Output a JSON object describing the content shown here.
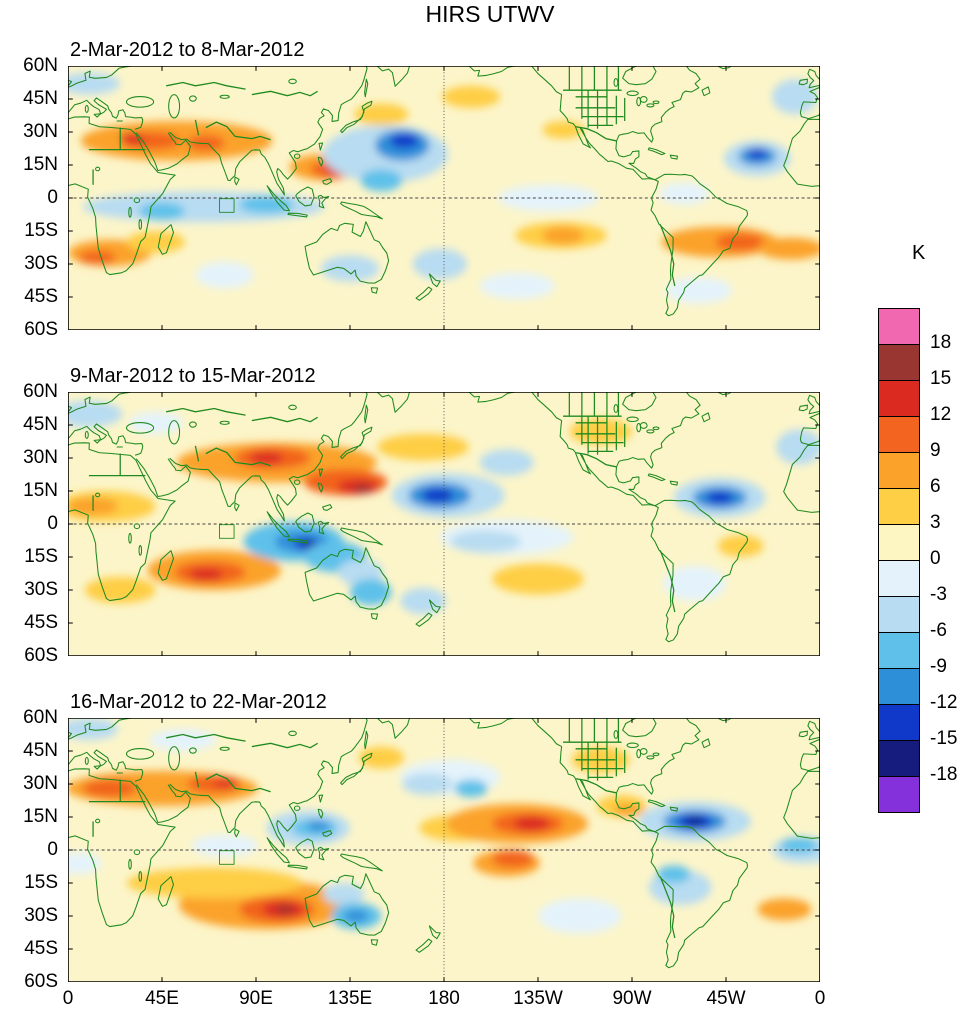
{
  "title": "HIRS UTWV",
  "colorbar": {
    "label": "K"
  },
  "colors": {
    "map_background": "#FCF5C9",
    "coastline": "#1F8A1F",
    "gridline": "#444444",
    "frame": "#000000"
  },
  "chart_data": {
    "type": "heatmap",
    "title": "HIRS UTWV",
    "units": "K",
    "lat_range": [
      -60,
      60
    ],
    "lon_range_deg_east": [
      0,
      360
    ],
    "lat_labels": [
      "60N",
      "45N",
      "30N",
      "15N",
      "0",
      "15S",
      "30S",
      "45S",
      "60S"
    ],
    "lon_labels": [
      "0",
      "45E",
      "90E",
      "135E",
      "180",
      "135W",
      "90W",
      "45W",
      "0"
    ],
    "levels": [
      -18,
      -15,
      -12,
      -9,
      -6,
      -3,
      0,
      3,
      6,
      9,
      12,
      15,
      18
    ],
    "palette_low_to_high": [
      "#8430DB",
      "#151C7D",
      "#1039C9",
      "#2E8FD9",
      "#5FC1EA",
      "#B8DCF1",
      "#E4F3FB",
      "#FDF6C3",
      "#FECE45",
      "#FBA22A",
      "#F2641F",
      "#DB2A20",
      "#993632",
      "#F168B1"
    ],
    "background_anomaly_color": "#FCF5C9",
    "gridlines": {
      "equator_dashed": true,
      "dateline_dotted": true
    },
    "feature_format": [
      "lon_deg_east",
      "lat_deg",
      "rx_deg",
      "ry_deg",
      "anomaly_K"
    ],
    "panels": [
      {
        "label": "2-Mar-2012 to 8-Mar-2012",
        "features": [
          [
            52,
            26,
            46,
            9,
            7
          ],
          [
            40,
            26,
            14,
            4,
            10
          ],
          [
            31,
            27,
            6,
            2.6,
            13
          ],
          [
            66,
            25,
            9,
            3.5,
            10
          ],
          [
            122,
            14,
            16,
            6,
            7
          ],
          [
            128,
            13,
            12,
            4.2,
            10
          ],
          [
            128,
            13,
            5.5,
            2.2,
            13
          ],
          [
            193,
            46,
            14,
            5,
            4
          ],
          [
            237,
            31,
            10,
            4,
            4
          ],
          [
            150,
            38,
            13,
            5,
            4
          ],
          [
            20,
            -25,
            20,
            6,
            7
          ],
          [
            14,
            -27,
            9,
            3,
            10
          ],
          [
            42,
            -20,
            14,
            5,
            4
          ],
          [
            312,
            -20,
            28,
            7,
            7
          ],
          [
            322,
            -20,
            12,
            4,
            10
          ],
          [
            346,
            -23,
            16,
            5,
            7
          ],
          [
            236,
            -17,
            22,
            6,
            4
          ],
          [
            237,
            -17,
            10,
            4,
            7
          ],
          [
            65,
            -4,
            58,
            7,
            -4
          ],
          [
            95,
            -3,
            13,
            4,
            -7
          ],
          [
            45,
            -6,
            11,
            4,
            -7
          ],
          [
            152,
            20,
            30,
            13,
            -4
          ],
          [
            160,
            24,
            13,
            7,
            -10
          ],
          [
            161,
            26,
            7,
            3.2,
            -13
          ],
          [
            150,
            8,
            10,
            5,
            -7
          ],
          [
            330,
            18,
            16,
            8,
            -4
          ],
          [
            330,
            19,
            9,
            4.2,
            -10
          ],
          [
            330,
            20,
            4.5,
            2.2,
            -13
          ],
          [
            10,
            52,
            15,
            5,
            -4
          ],
          [
            348,
            46,
            11,
            8,
            -4
          ],
          [
            135,
            -32,
            14,
            6,
            -4
          ],
          [
            178,
            -30,
            13,
            7,
            -4
          ],
          [
            75,
            -35,
            14,
            6,
            -2
          ],
          [
            230,
            0,
            24,
            6,
            -2
          ],
          [
            295,
            2,
            12,
            5,
            -2
          ],
          [
            215,
            -40,
            18,
            6,
            -2
          ],
          [
            302,
            -42,
            16,
            6,
            -2
          ]
        ]
      },
      {
        "label": "9-Mar-2012 to 15-Mar-2012",
        "features": [
          [
            100,
            28,
            48,
            9,
            7
          ],
          [
            98,
            30,
            18,
            5,
            10
          ],
          [
            95,
            30,
            8,
            2.8,
            13
          ],
          [
            133,
            19,
            20,
            6,
            10
          ],
          [
            139,
            17,
            10,
            3.4,
            13
          ],
          [
            141,
            16,
            4.5,
            1.7,
            16
          ],
          [
            170,
            35,
            22,
            6,
            4
          ],
          [
            70,
            -21,
            32,
            9,
            7
          ],
          [
            68,
            -22,
            17,
            5,
            10
          ],
          [
            66,
            -23,
            8,
            2.8,
            13
          ],
          [
            18,
            8,
            24,
            7,
            4
          ],
          [
            12,
            8,
            12,
            4,
            7
          ],
          [
            25,
            -30,
            17,
            6,
            4
          ],
          [
            225,
            -25,
            22,
            7,
            4
          ],
          [
            255,
            42,
            15,
            6,
            4
          ],
          [
            322,
            -10,
            11,
            5,
            4
          ],
          [
            182,
            13,
            27,
            10,
            -4
          ],
          [
            178,
            13,
            15,
            6,
            -10
          ],
          [
            177,
            13,
            7.5,
            3.2,
            -13
          ],
          [
            108,
            -8,
            24,
            9,
            -7
          ],
          [
            112,
            -8,
            13,
            5,
            -10
          ],
          [
            114,
            -9,
            6,
            2.5,
            -13
          ],
          [
            115,
            -9,
            3,
            1.3,
            -16
          ],
          [
            128,
            -15,
            15,
            7,
            -7
          ],
          [
            140,
            -22,
            11,
            6,
            -4
          ],
          [
            145,
            -31,
            10,
            6,
            -7
          ],
          [
            312,
            12,
            22,
            9,
            -4
          ],
          [
            312,
            12,
            13,
            5.2,
            -10
          ],
          [
            312,
            12,
            6.5,
            2.8,
            -13
          ],
          [
            210,
            -6,
            32,
            8,
            -2
          ],
          [
            200,
            -8,
            17,
            5,
            -4
          ],
          [
            10,
            50,
            16,
            6,
            -4
          ],
          [
            42,
            46,
            13,
            5,
            -2
          ],
          [
            350,
            35,
            11,
            8,
            -4
          ],
          [
            210,
            28,
            13,
            6,
            -4
          ],
          [
            300,
            -27,
            15,
            8,
            -2
          ],
          [
            170,
            -35,
            11,
            6,
            -4
          ]
        ]
      },
      {
        "label": "16-Mar-2012 to 22-Mar-2012",
        "features": [
          [
            45,
            28,
            46,
            8,
            7
          ],
          [
            20,
            28,
            13,
            4,
            10
          ],
          [
            70,
            30,
            13,
            4,
            10
          ],
          [
            75,
            30,
            5,
            1.8,
            13
          ],
          [
            188,
            10,
            20,
            6,
            4
          ],
          [
            215,
            12,
            34,
            9,
            7
          ],
          [
            220,
            12,
            17,
            5,
            10
          ],
          [
            222,
            12,
            8.5,
            3.2,
            13
          ],
          [
            210,
            -6,
            16,
            6,
            7
          ],
          [
            213,
            -4,
            10,
            4,
            10
          ],
          [
            95,
            -25,
            42,
            11,
            7
          ],
          [
            100,
            -27,
            18,
            6,
            10
          ],
          [
            103,
            -27,
            10,
            3.6,
            13
          ],
          [
            104,
            -27,
            4.5,
            1.7,
            16
          ],
          [
            70,
            -15,
            42,
            7,
            4
          ],
          [
            265,
            20,
            12,
            5,
            4
          ],
          [
            268,
            18,
            7,
            2.8,
            7
          ],
          [
            255,
            41,
            14,
            6,
            4
          ],
          [
            150,
            42,
            11,
            5,
            4
          ],
          [
            343,
            -27,
            13,
            5,
            7
          ],
          [
            115,
            10,
            20,
            8,
            -4
          ],
          [
            118,
            10,
            11,
            4.2,
            -7
          ],
          [
            120,
            11,
            5.5,
            2.3,
            -10
          ],
          [
            300,
            13,
            27,
            9,
            -4
          ],
          [
            300,
            13,
            15,
            5.2,
            -10
          ],
          [
            300,
            13,
            8.5,
            3.2,
            -13
          ],
          [
            300,
            13,
            4.2,
            1.7,
            -16
          ],
          [
            132,
            -20,
            10,
            5,
            -4
          ],
          [
            138,
            -30,
            12,
            6,
            -7
          ],
          [
            138,
            -30,
            6,
            2.8,
            -10
          ],
          [
            352,
            0,
            15,
            6,
            -4
          ],
          [
            350,
            2,
            9,
            3.6,
            -7
          ],
          [
            5,
            -6,
            11,
            5,
            -2
          ],
          [
            293,
            -17,
            15,
            8,
            -4
          ],
          [
            290,
            -11,
            8,
            4,
            -7
          ],
          [
            183,
            33,
            24,
            8,
            -2
          ],
          [
            172,
            30,
            12,
            5,
            -4
          ],
          [
            193,
            28,
            8,
            4,
            -7
          ],
          [
            10,
            55,
            14,
            5,
            -4
          ],
          [
            55,
            50,
            16,
            5,
            -2
          ],
          [
            245,
            -30,
            20,
            8,
            -2
          ],
          [
            75,
            2,
            16,
            5,
            -2
          ]
        ]
      }
    ]
  }
}
